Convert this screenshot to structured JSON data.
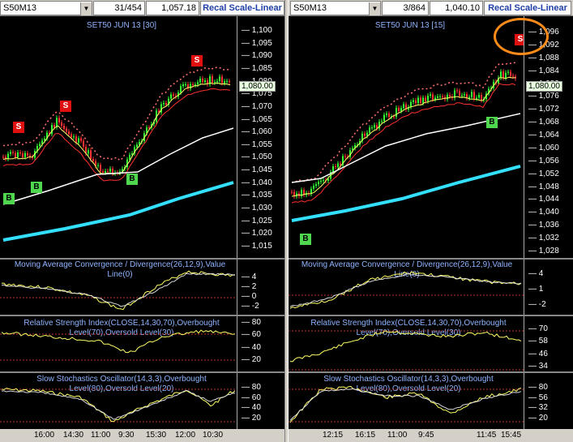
{
  "left": {
    "symbol": "S50M13",
    "field2": "31/454",
    "last": "1,057.18",
    "recal": "Recal Scale-Linear",
    "title": "SET50 JUN 13   [30]",
    "price_ticks": [
      "1,100",
      "1,095",
      "1,090",
      "1,085",
      "1,080",
      "1,075",
      "1,070",
      "1,065",
      "1,060",
      "1,055",
      "1,050",
      "1,045",
      "1,040",
      "1,035",
      "1,030",
      "1,025",
      "1,020",
      "1,015"
    ],
    "current_price": "1,080.00",
    "macd_title": "Moving Average Convergence / Divergence(26,12,9),Value Line(0)",
    "macd_ticks": [
      "4",
      "2",
      "0",
      "-2"
    ],
    "rsi_title": "Relative Strength Index(CLOSE,14,30,70),Overbought Level(70),Oversold Level(30)",
    "rsi_ticks": [
      "80",
      "60",
      "40",
      "20"
    ],
    "sto_title": "Slow Stochastics Oscillator(14,3,3),Overbought Level(80),Oversold Level(20)",
    "sto_ticks": [
      "80",
      "60",
      "40",
      "20"
    ],
    "times": [
      "16:00",
      "14:30",
      "11:00",
      "9:30",
      "15:30",
      "12:00",
      "10:30"
    ]
  },
  "right": {
    "symbol": "S50M13",
    "field2": "3/864",
    "last": "1,040.10",
    "recal": "Recal Scale-Linear",
    "title": "SET50 JUN 13   [15]",
    "price_ticks": [
      "1,096",
      "1,092",
      "1,088",
      "1,084",
      "1,080",
      "1,076",
      "1,072",
      "1,068",
      "1,064",
      "1,060",
      "1,056",
      "1,052",
      "1,048",
      "1,044",
      "1,040",
      "1,036",
      "1,032",
      "1,028"
    ],
    "current_price": "1,080.00",
    "macd_title": "Moving Average Convergence / Divergence(26,12,9),Value Line(0)",
    "macd_ticks": [
      "4",
      "1",
      "-2"
    ],
    "rsi_title": "Relative Strength Index(CLOSE,14,30,70),Overbought Level(70),Oversold Level(30)",
    "rsi_ticks": [
      "70",
      "58",
      "46",
      "34"
    ],
    "sto_title": "Slow Stochastics Oscillator(14,3,3),Overbought Level(80),Oversold Level(20)",
    "sto_ticks": [
      "80",
      "56",
      "32",
      "20"
    ],
    "times": [
      "12:15",
      "16:15",
      "11:00",
      "9:45",
      "11:45",
      "15:45"
    ]
  },
  "signals": {
    "sell": "S",
    "buy": "B"
  },
  "colors": {
    "bg": "#000000",
    "ema_fast": "#ffff66",
    "ema_mid": "#ff3030",
    "ema_slow": "#ffffff",
    "trend": "#33e0ff",
    "annot": "#ff8c1a",
    "title": "#8fb4ff"
  }
}
